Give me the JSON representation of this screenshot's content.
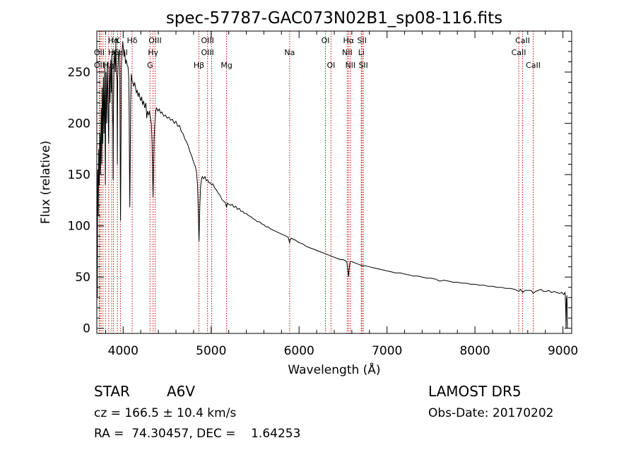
{
  "chart_data": {
    "type": "line",
    "title": "spec-57787-GAC073N02B1_sp08-116.fits",
    "xlabel": "Wavelength (Å)",
    "ylabel": "Flux (relative)",
    "xlim": [
      3700,
      9100
    ],
    "ylim": [
      -5,
      290
    ],
    "xticks": [
      4000,
      5000,
      6000,
      7000,
      8000,
      9000
    ],
    "yticks": [
      0,
      50,
      100,
      150,
      200,
      250
    ],
    "grid": false,
    "line_color": "#000000",
    "marker_color": "#cc0000",
    "spectrum": [
      [
        3700,
        0
      ],
      [
        3702,
        68
      ],
      [
        3706,
        30
      ],
      [
        3710,
        155
      ],
      [
        3716,
        110
      ],
      [
        3722,
        175
      ],
      [
        3728,
        140
      ],
      [
        3735,
        190
      ],
      [
        3742,
        150
      ],
      [
        3750,
        215
      ],
      [
        3756,
        160
      ],
      [
        3762,
        235
      ],
      [
        3768,
        180
      ],
      [
        3775,
        245
      ],
      [
        3782,
        190
      ],
      [
        3790,
        255
      ],
      [
        3797,
        140
      ],
      [
        3804,
        250
      ],
      [
        3812,
        200
      ],
      [
        3820,
        260
      ],
      [
        3828,
        215
      ],
      [
        3835,
        180
      ],
      [
        3842,
        255
      ],
      [
        3850,
        220
      ],
      [
        3858,
        262
      ],
      [
        3866,
        230
      ],
      [
        3872,
        268
      ],
      [
        3878,
        215
      ],
      [
        3883,
        195
      ],
      [
        3886,
        145
      ],
      [
        3890,
        215
      ],
      [
        3896,
        260
      ],
      [
        3902,
        270
      ],
      [
        3910,
        250
      ],
      [
        3916,
        278
      ],
      [
        3922,
        250
      ],
      [
        3930,
        240
      ],
      [
        3934,
        160
      ],
      [
        3938,
        245
      ],
      [
        3945,
        265
      ],
      [
        3955,
        272
      ],
      [
        3962,
        245
      ],
      [
        3967,
        150
      ],
      [
        3970,
        105
      ],
      [
        3974,
        165
      ],
      [
        3980,
        255
      ],
      [
        3988,
        270
      ],
      [
        3995,
        280
      ],
      [
        4002,
        272
      ],
      [
        4010,
        265
      ],
      [
        4018,
        270
      ],
      [
        4026,
        258
      ],
      [
        4035,
        262
      ],
      [
        4045,
        257
      ],
      [
        4055,
        255
      ],
      [
        4063,
        245
      ],
      [
        4068,
        210
      ],
      [
        4072,
        150
      ],
      [
        4075,
        118
      ],
      [
        4079,
        155
      ],
      [
        4085,
        220
      ],
      [
        4092,
        248
      ],
      [
        4100,
        242
      ],
      [
        4110,
        240
      ],
      [
        4120,
        236
      ],
      [
        4130,
        240
      ],
      [
        4140,
        235
      ],
      [
        4150,
        230
      ],
      [
        4160,
        232
      ],
      [
        4170,
        226
      ],
      [
        4180,
        230
      ],
      [
        4190,
        225
      ],
      [
        4200,
        222
      ],
      [
        4210,
        226
      ],
      [
        4220,
        218
      ],
      [
        4232,
        222
      ],
      [
        4245,
        215
      ],
      [
        4258,
        220
      ],
      [
        4268,
        205
      ],
      [
        4278,
        212
      ],
      [
        4290,
        208
      ],
      [
        4300,
        212
      ],
      [
        4310,
        205
      ],
      [
        4320,
        200
      ],
      [
        4328,
        180
      ],
      [
        4334,
        150
      ],
      [
        4340,
        128
      ],
      [
        4346,
        155
      ],
      [
        4352,
        185
      ],
      [
        4360,
        200
      ],
      [
        4370,
        212
      ],
      [
        4380,
        215
      ],
      [
        4395,
        212
      ],
      [
        4410,
        214
      ],
      [
        4425,
        210
      ],
      [
        4440,
        211
      ],
      [
        4460,
        207
      ],
      [
        4480,
        208
      ],
      [
        4500,
        205
      ],
      [
        4520,
        206
      ],
      [
        4540,
        203
      ],
      [
        4560,
        204
      ],
      [
        4580,
        200
      ],
      [
        4600,
        202
      ],
      [
        4620,
        197
      ],
      [
        4640,
        198
      ],
      [
        4660,
        192
      ],
      [
        4680,
        190
      ],
      [
        4700,
        185
      ],
      [
        4720,
        182
      ],
      [
        4740,
        178
      ],
      [
        4760,
        172
      ],
      [
        4780,
        168
      ],
      [
        4800,
        162
      ],
      [
        4820,
        158
      ],
      [
        4835,
        152
      ],
      [
        4845,
        140
      ],
      [
        4852,
        118
      ],
      [
        4858,
        98
      ],
      [
        4862,
        85
      ],
      [
        4866,
        98
      ],
      [
        4872,
        120
      ],
      [
        4880,
        138
      ],
      [
        4890,
        145
      ],
      [
        4900,
        148
      ],
      [
        4915,
        146
      ],
      [
        4930,
        148
      ],
      [
        4945,
        144
      ],
      [
        4960,
        145
      ],
      [
        4975,
        142
      ],
      [
        4990,
        142
      ],
      [
        5005,
        140
      ],
      [
        5020,
        141
      ],
      [
        5040,
        137
      ],
      [
        5060,
        135
      ],
      [
        5080,
        132
      ],
      [
        5100,
        130
      ],
      [
        5120,
        126
      ],
      [
        5140,
        124
      ],
      [
        5160,
        123
      ],
      [
        5175,
        118
      ],
      [
        5185,
        122
      ],
      [
        5200,
        121
      ],
      [
        5220,
        120
      ],
      [
        5240,
        121
      ],
      [
        5260,
        118
      ],
      [
        5280,
        119
      ],
      [
        5300,
        116
      ],
      [
        5320,
        117
      ],
      [
        5340,
        114
      ],
      [
        5360,
        114
      ],
      [
        5380,
        112
      ],
      [
        5400,
        112
      ],
      [
        5425,
        110
      ],
      [
        5450,
        109
      ],
      [
        5475,
        107
      ],
      [
        5500,
        106
      ],
      [
        5525,
        104
      ],
      [
        5550,
        104
      ],
      [
        5575,
        102
      ],
      [
        5600,
        101
      ],
      [
        5625,
        99
      ],
      [
        5650,
        99
      ],
      [
        5675,
        97
      ],
      [
        5700,
        96
      ],
      [
        5725,
        95
      ],
      [
        5750,
        94
      ],
      [
        5775,
        93
      ],
      [
        5800,
        92
      ],
      [
        5825,
        91
      ],
      [
        5850,
        90
      ],
      [
        5875,
        89
      ],
      [
        5885,
        86
      ],
      [
        5892,
        83
      ],
      [
        5898,
        86
      ],
      [
        5910,
        88
      ],
      [
        5930,
        87
      ],
      [
        5960,
        86
      ],
      [
        5990,
        84
      ],
      [
        6020,
        83
      ],
      [
        6050,
        82
      ],
      [
        6080,
        80
      ],
      [
        6110,
        79
      ],
      [
        6140,
        78
      ],
      [
        6170,
        77
      ],
      [
        6200,
        76
      ],
      [
        6230,
        75
      ],
      [
        6260,
        74
      ],
      [
        6290,
        73
      ],
      [
        6320,
        72
      ],
      [
        6350,
        71
      ],
      [
        6380,
        70
      ],
      [
        6410,
        69
      ],
      [
        6440,
        68
      ],
      [
        6470,
        67
      ],
      [
        6500,
        67
      ],
      [
        6530,
        66
      ],
      [
        6545,
        64
      ],
      [
        6555,
        56
      ],
      [
        6563,
        50
      ],
      [
        6570,
        58
      ],
      [
        6580,
        65
      ],
      [
        6600,
        65
      ],
      [
        6630,
        64
      ],
      [
        6660,
        63
      ],
      [
        6690,
        62
      ],
      [
        6720,
        61
      ],
      [
        6750,
        61
      ],
      [
        6800,
        60
      ],
      [
        6850,
        59
      ],
      [
        6900,
        58
      ],
      [
        6950,
        57
      ],
      [
        7000,
        56
      ],
      [
        7050,
        55
      ],
      [
        7100,
        54
      ],
      [
        7150,
        54
      ],
      [
        7200,
        53
      ],
      [
        7250,
        52
      ],
      [
        7300,
        51
      ],
      [
        7350,
        51
      ],
      [
        7400,
        50
      ],
      [
        7450,
        49
      ],
      [
        7500,
        49
      ],
      [
        7550,
        48
      ],
      [
        7600,
        46
      ],
      [
        7650,
        47
      ],
      [
        7700,
        46
      ],
      [
        7750,
        45
      ],
      [
        7800,
        45
      ],
      [
        7850,
        44
      ],
      [
        7900,
        44
      ],
      [
        7950,
        43
      ],
      [
        8000,
        43
      ],
      [
        8050,
        42
      ],
      [
        8100,
        42
      ],
      [
        8150,
        41
      ],
      [
        8200,
        41
      ],
      [
        8250,
        40
      ],
      [
        8300,
        40
      ],
      [
        8350,
        39
      ],
      [
        8400,
        39
      ],
      [
        8450,
        38
      ],
      [
        8498,
        36
      ],
      [
        8520,
        38
      ],
      [
        8542,
        35
      ],
      [
        8570,
        37
      ],
      [
        8600,
        37
      ],
      [
        8640,
        37
      ],
      [
        8662,
        34
      ],
      [
        8690,
        36
      ],
      [
        8720,
        37
      ],
      [
        8750,
        38
      ],
      [
        8780,
        36
      ],
      [
        8810,
        36
      ],
      [
        8840,
        37
      ],
      [
        8870,
        35
      ],
      [
        8900,
        36
      ],
      [
        8930,
        35
      ],
      [
        8960,
        34
      ],
      [
        8990,
        35
      ],
      [
        9010,
        33
      ],
      [
        9025,
        35
      ],
      [
        9032,
        20
      ],
      [
        9036,
        0
      ],
      [
        9040,
        28
      ],
      [
        9046,
        32
      ],
      [
        9052,
        0
      ]
    ],
    "lines": [
      {
        "label": "Hα",
        "wave": 3889,
        "row": 0
      },
      {
        "label": "K",
        "wave": 3934,
        "row": 0
      },
      {
        "label": "Hδ",
        "wave": 4102,
        "row": 0
      },
      {
        "label": "OIII",
        "wave": 4363,
        "row": 0
      },
      {
        "label": "OIII",
        "wave": 4959,
        "row": 0
      },
      {
        "label": "OI",
        "wave": 6300,
        "row": 0
      },
      {
        "label": "Hα",
        "wave": 6563,
        "row": 0
      },
      {
        "label": "SII",
        "wave": 6716,
        "row": 0
      },
      {
        "label": "CaII",
        "wave": 8542,
        "row": 0
      },
      {
        "label": "OII",
        "wave": 3727,
        "row": 1
      },
      {
        "label": "He",
        "wave": 3889,
        "row": 1
      },
      {
        "label": "CaII",
        "wave": 3968,
        "row": 1
      },
      {
        "label": "Hγ",
        "wave": 4340,
        "row": 1
      },
      {
        "label": "OIII",
        "wave": 4959,
        "row": 1
      },
      {
        "label": "Na",
        "wave": 5893,
        "row": 1
      },
      {
        "label": "NII",
        "wave": 6548,
        "row": 1
      },
      {
        "label": "Li",
        "wave": 6708,
        "row": 1
      },
      {
        "label": "CaII",
        "wave": 8498,
        "row": 1
      },
      {
        "label": "OII",
        "wave": 3727,
        "row": 2
      },
      {
        "label": "Hη",
        "wave": 3835,
        "row": 2
      },
      {
        "label": "G",
        "wave": 4305,
        "row": 2
      },
      {
        "label": "Hβ",
        "wave": 4861,
        "row": 2
      },
      {
        "label": "Mg",
        "wave": 5175,
        "row": 2
      },
      {
        "label": "OI",
        "wave": 6363,
        "row": 2
      },
      {
        "label": "NII",
        "wave": 6583,
        "row": 2
      },
      {
        "label": "SII",
        "wave": 6731,
        "row": 2
      },
      {
        "label": "CaII",
        "wave": 8662,
        "row": 2
      }
    ],
    "marker_waves": [
      3727,
      3734,
      3750,
      3771,
      3798,
      3835,
      3869,
      3889,
      3934,
      3968,
      4102,
      4305,
      4340,
      4363,
      4861,
      4959,
      5007,
      5175,
      5893,
      6300,
      6363,
      6548,
      6563,
      6583,
      6708,
      6716,
      6731,
      8498,
      8542,
      8662
    ]
  },
  "info": {
    "object_type": "STAR",
    "subclass": "A6V",
    "survey": "LAMOST DR5",
    "redshift": "cz = 166.5 ± 10.4 km/s",
    "obs_date": "Obs-Date: 20170202",
    "coords": "RA =  74.30457, DEC =    1.64253"
  }
}
